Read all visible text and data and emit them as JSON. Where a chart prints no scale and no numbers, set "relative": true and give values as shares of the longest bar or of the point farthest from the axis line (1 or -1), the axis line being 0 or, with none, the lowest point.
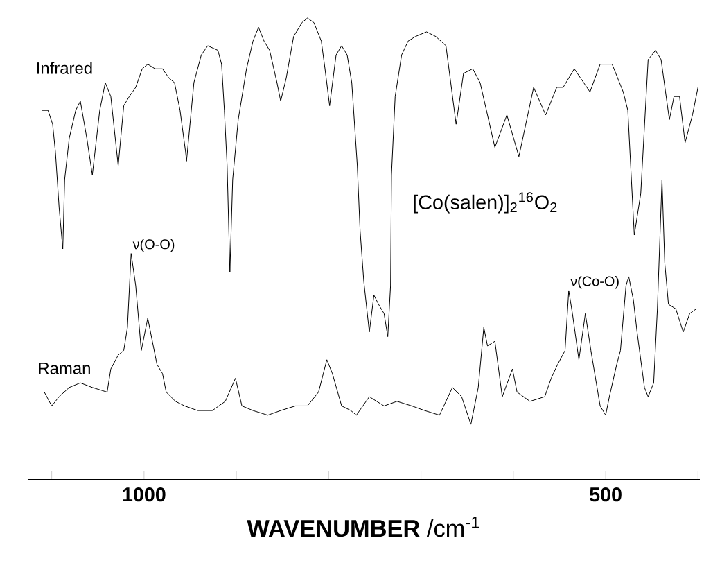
{
  "chart_data": {
    "type": "line",
    "relative": true,
    "xlabel": "**WAVENUMBER** /cm$^{-1}$",
    "xlim": [
      1126,
      398
    ],
    "xticks": [
      {
        "value": 1100,
        "label": null
      },
      1000,
      {
        "value": 900,
        "label": null
      },
      {
        "value": 800,
        "label": null
      },
      {
        "value": 700,
        "label": null
      },
      {
        "value": 600,
        "label": null
      },
      500,
      {
        "value": 400,
        "label": null
      }
    ],
    "annotations": [
      {
        "text": "ν(O-O)",
        "x": 1014,
        "y": 0.49
      },
      {
        "text": "ν(Co-O)",
        "x": 540,
        "y": 0.41
      },
      "[Co(salen)]$_{2}$$^{16}$O$_{2}$"
    ],
    "series": [
      {
        "name": "Infrared",
        "color": "#000000",
        "x": [
          1110,
          1104,
          1099,
          1096,
          1092,
          1088,
          1086,
          1081,
          1074,
          1069,
          1062,
          1056,
          1048,
          1042,
          1036,
          1028,
          1022,
          1016,
          1009,
          1002,
          996,
          988,
          980,
          973,
          967,
          961,
          955,
          954,
          946,
          938,
          931,
          920,
          916,
          913,
          910,
          907,
          904,
          898,
          889,
          882,
          876,
          870,
          864,
          856,
          852,
          846,
          838,
          829,
          823,
          816,
          808,
          804,
          799,
          792,
          786,
          780,
          775,
          769,
          766,
          762,
          756,
          751,
          746,
          740,
          736,
          733,
          732,
          728,
          721,
          714,
          706,
          694,
          684,
          673,
          662,
          654,
          644,
          636,
          620,
          607,
          594,
          578,
          565,
          553,
          546,
          534,
          517,
          506,
          493,
          481,
          476,
          469,
          462,
          454,
          446,
          440,
          431,
          426,
          420,
          414,
          406,
          400
        ],
        "values": [
          0.8,
          0.8,
          0.77,
          0.71,
          0.59,
          0.5,
          0.65,
          0.74,
          0.8,
          0.82,
          0.74,
          0.66,
          0.8,
          0.86,
          0.83,
          0.68,
          0.81,
          0.83,
          0.85,
          0.89,
          0.9,
          0.89,
          0.89,
          0.87,
          0.86,
          0.8,
          0.71,
          0.69,
          0.86,
          0.92,
          0.94,
          0.93,
          0.9,
          0.8,
          0.68,
          0.45,
          0.65,
          0.78,
          0.89,
          0.95,
          0.98,
          0.95,
          0.93,
          0.86,
          0.82,
          0.87,
          0.96,
          0.99,
          1.0,
          0.99,
          0.95,
          0.89,
          0.81,
          0.92,
          0.94,
          0.92,
          0.86,
          0.68,
          0.54,
          0.43,
          0.32,
          0.4,
          0.38,
          0.36,
          0.31,
          0.42,
          0.66,
          0.83,
          0.92,
          0.95,
          0.96,
          0.97,
          0.96,
          0.94,
          0.77,
          0.88,
          0.89,
          0.86,
          0.72,
          0.79,
          0.7,
          0.85,
          0.79,
          0.85,
          0.85,
          0.89,
          0.84,
          0.9,
          0.9,
          0.84,
          0.8,
          0.53,
          0.62,
          0.91,
          0.93,
          0.91,
          0.78,
          0.83,
          0.83,
          0.73,
          0.79,
          0.85
        ]
      },
      {
        "name": "Raman",
        "color": "#000000",
        "x": [
          1108,
          1100,
          1092,
          1081,
          1069,
          1056,
          1040,
          1036,
          1028,
          1022,
          1018,
          1014,
          1009,
          1003,
          997,
          996,
          991,
          986,
          980,
          976,
          966,
          956,
          942,
          926,
          912,
          901,
          894,
          882,
          866,
          852,
          836,
          823,
          811,
          802,
          796,
          786,
          776,
          770,
          756,
          740,
          726,
          710,
          696,
          680,
          666,
          656,
          646,
          638,
          632,
          628,
          620,
          612,
          601,
          596,
          582,
          566,
          559,
          552,
          544,
          540,
          536,
          529,
          522,
          516,
          506,
          500,
          496,
          488,
          484,
          478,
          475,
          470,
          466,
          458,
          454,
          448,
          444,
          439,
          436,
          432,
          424,
          416,
          409,
          402
        ],
        "values": [
          0.19,
          0.16,
          0.18,
          0.2,
          0.21,
          0.2,
          0.19,
          0.24,
          0.27,
          0.28,
          0.33,
          0.49,
          0.42,
          0.28,
          0.34,
          0.35,
          0.3,
          0.25,
          0.23,
          0.19,
          0.17,
          0.16,
          0.15,
          0.15,
          0.17,
          0.22,
          0.16,
          0.15,
          0.14,
          0.15,
          0.16,
          0.16,
          0.19,
          0.26,
          0.23,
          0.16,
          0.15,
          0.14,
          0.18,
          0.16,
          0.17,
          0.16,
          0.15,
          0.14,
          0.2,
          0.18,
          0.12,
          0.2,
          0.33,
          0.29,
          0.3,
          0.18,
          0.24,
          0.19,
          0.17,
          0.18,
          0.22,
          0.25,
          0.28,
          0.41,
          0.36,
          0.26,
          0.36,
          0.28,
          0.16,
          0.14,
          0.18,
          0.25,
          0.28,
          0.42,
          0.44,
          0.39,
          0.32,
          0.2,
          0.18,
          0.21,
          0.37,
          0.65,
          0.47,
          0.38,
          0.37,
          0.32,
          0.36,
          0.37
        ]
      }
    ]
  }
}
